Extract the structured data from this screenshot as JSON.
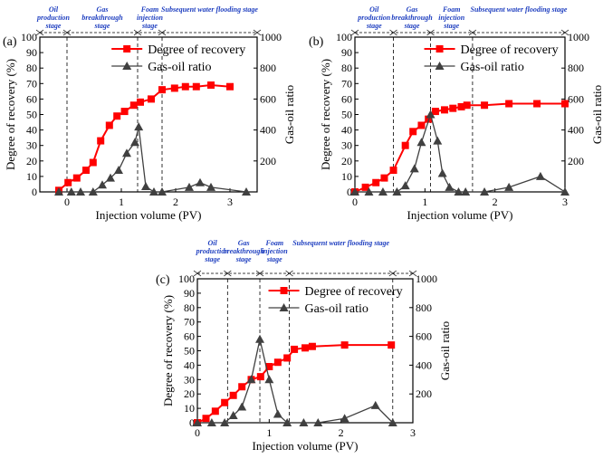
{
  "colors": {
    "recovery": "#ff0000",
    "gor": "#404040",
    "stage_text": "#2040c0"
  },
  "chart_data": [
    {
      "type": "line",
      "panel_label": "(a)",
      "xlabel": "Injection volume (PV)",
      "ylabel_left": "Degree of recovery (%)",
      "ylabel_right": "Gas-oil ratio",
      "xlim": [
        -0.5,
        3.5
      ],
      "ylim_left": [
        0,
        100
      ],
      "ylim_right": [
        0,
        1000
      ],
      "xticks": [
        0,
        1,
        2,
        3
      ],
      "yticks_left": [
        0,
        10,
        20,
        30,
        40,
        50,
        60,
        70,
        80,
        90,
        100
      ],
      "yticks_right": [
        200,
        400,
        600,
        800,
        1000
      ],
      "legend": [
        "Degree of recovery",
        "Gas-oil ratio"
      ],
      "legend_position": "top-right",
      "stage_boundaries": [
        -0.5,
        0.0,
        1.3,
        1.75,
        3.5
      ],
      "stages": [
        [
          "Oil",
          "production",
          "stage"
        ],
        [
          "Gas",
          "breakthrough",
          "stage"
        ],
        [
          "Foam",
          "injection",
          "stage"
        ],
        [
          "Subsequent water flooding stage"
        ]
      ],
      "series": [
        {
          "name": "Degree of recovery",
          "axis": "left",
          "x": [
            -0.15,
            0.02,
            0.18,
            0.35,
            0.48,
            0.62,
            0.78,
            0.92,
            1.06,
            1.23,
            1.35,
            1.55,
            1.75,
            1.98,
            2.18,
            2.38,
            2.65,
            3.0
          ],
          "y": [
            1,
            6,
            9,
            14,
            19,
            33,
            43,
            49,
            52,
            56,
            58,
            60,
            66,
            67,
            68,
            68,
            69,
            68
          ]
        },
        {
          "name": "Gas-oil ratio",
          "axis": "right",
          "x": [
            -0.15,
            0.08,
            0.25,
            0.48,
            0.65,
            0.8,
            0.95,
            1.1,
            1.25,
            1.32,
            1.45,
            1.6,
            1.75,
            2.25,
            2.45,
            2.65,
            3.3
          ],
          "y": [
            0,
            0,
            0,
            0,
            45,
            90,
            140,
            250,
            320,
            420,
            35,
            0,
            0,
            30,
            60,
            30,
            0
          ]
        }
      ]
    },
    {
      "type": "line",
      "panel_label": "(b)",
      "xlabel": "Injection volume (PV)",
      "ylabel_left": "Degree of recovery (%)",
      "ylabel_right": "Gas-oil ratio",
      "xlim": [
        0,
        3
      ],
      "ylim_left": [
        0,
        100
      ],
      "ylim_right": [
        0,
        1000
      ],
      "xticks": [
        0,
        1,
        2,
        3
      ],
      "yticks_left": [
        0,
        10,
        20,
        30,
        40,
        50,
        60,
        70,
        80,
        90,
        100
      ],
      "yticks_right": [
        200,
        400,
        600,
        800,
        1000
      ],
      "legend": [
        "Degree of recovery",
        "Gas-oil ratio"
      ],
      "legend_position": "top-right",
      "stage_boundaries": [
        0,
        0.55,
        1.08,
        1.68,
        3.0
      ],
      "stages": [
        [
          "Oil",
          "production",
          "stage"
        ],
        [
          "Gas",
          "breakthrough",
          "stage"
        ],
        [
          "Foam",
          "injection",
          "stage"
        ],
        [
          "Subsequent water flooding stage"
        ]
      ],
      "series": [
        {
          "name": "Degree of recovery",
          "axis": "left",
          "x": [
            0,
            0.15,
            0.3,
            0.42,
            0.55,
            0.72,
            0.83,
            0.95,
            1.05,
            1.15,
            1.28,
            1.4,
            1.52,
            1.6,
            1.85,
            2.2,
            2.6,
            3.0
          ],
          "y": [
            0,
            3,
            6,
            9,
            14,
            30,
            39,
            43,
            47,
            52,
            53,
            54,
            55,
            56,
            56,
            57,
            57,
            57
          ]
        },
        {
          "name": "Gas-oil ratio",
          "axis": "right",
          "x": [
            0,
            0.2,
            0.4,
            0.6,
            0.72,
            0.85,
            0.95,
            1.08,
            1.18,
            1.25,
            1.35,
            1.48,
            1.58,
            1.85,
            2.2,
            2.65,
            3.0
          ],
          "y": [
            0,
            0,
            0,
            0,
            40,
            150,
            320,
            500,
            330,
            120,
            30,
            0,
            0,
            0,
            30,
            100,
            0
          ]
        }
      ]
    },
    {
      "type": "line",
      "panel_label": "(c)",
      "xlabel": "Injection volume (PV)",
      "ylabel_left": "Degree of recovery (%)",
      "ylabel_right": "Gas-oil ratio",
      "xlim": [
        0,
        3
      ],
      "ylim_left": [
        0,
        100
      ],
      "ylim_right": [
        0,
        1000
      ],
      "xticks": [
        0,
        1,
        2,
        3
      ],
      "yticks_left": [
        0,
        10,
        20,
        30,
        40,
        50,
        60,
        70,
        80,
        90,
        100
      ],
      "yticks_right": [
        200,
        400,
        600,
        800,
        1000
      ],
      "legend": [
        "Degree of recovery",
        "Gas-oil ratio"
      ],
      "legend_position": "top-right",
      "stage_boundaries": [
        0,
        0.42,
        0.87,
        1.28,
        2.72,
        3.0
      ],
      "stages": [
        [
          "Oil",
          "production",
          "stage"
        ],
        [
          "Gas",
          "breakthrough",
          "stage"
        ],
        [
          "Foam",
          "injection",
          "stage"
        ],
        [
          "Subsequent water flooding stage"
        ]
      ],
      "series": [
        {
          "name": "Degree of recovery",
          "axis": "left",
          "x": [
            0,
            0.12,
            0.25,
            0.38,
            0.5,
            0.62,
            0.75,
            0.88,
            1.0,
            1.12,
            1.25,
            1.35,
            1.5,
            1.6,
            2.05,
            2.7
          ],
          "y": [
            0,
            3,
            8,
            14,
            19,
            25,
            30,
            32,
            39,
            42,
            45,
            51,
            52,
            53,
            54,
            54
          ]
        },
        {
          "name": "Gas-oil ratio",
          "axis": "right",
          "x": [
            0,
            0.2,
            0.38,
            0.5,
            0.62,
            0.75,
            0.87,
            1.0,
            1.12,
            1.25,
            1.48,
            1.68,
            2.05,
            2.48,
            2.72
          ],
          "y": [
            0,
            0,
            0,
            50,
            110,
            300,
            580,
            300,
            60,
            0,
            0,
            0,
            30,
            120,
            0
          ]
        }
      ]
    }
  ]
}
